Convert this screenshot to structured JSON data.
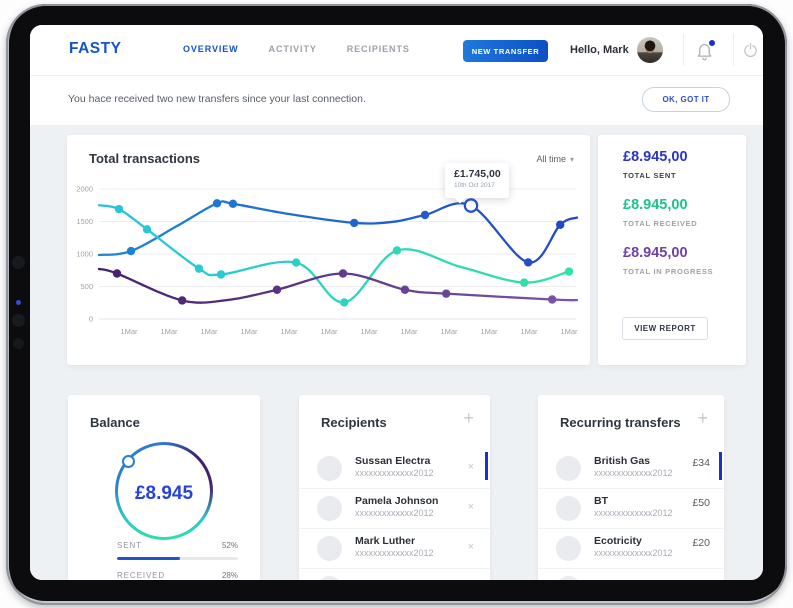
{
  "app": {
    "brand": "FASTY"
  },
  "nav": {
    "items": [
      {
        "label": "OVERVIEW",
        "active": true
      },
      {
        "label": "ACTIVITY",
        "active": false
      },
      {
        "label": "RECIPIENTS",
        "active": false
      }
    ],
    "new_transfer_label": "NEW TRANSFER",
    "greeting": "Hello, Mark"
  },
  "notification": {
    "message": "You hace received two new transfers since your last connection.",
    "dismiss_label": "OK, GOT IT"
  },
  "icons": {
    "add": "+",
    "close": "×",
    "caret": "▾"
  },
  "chart_card": {
    "title": "Total transactions",
    "range_label": "All time"
  },
  "chart_data": {
    "type": "line",
    "title": "Total transactions",
    "x_tick_labels": [
      "1Mar",
      "1Mar",
      "1Mar",
      "1Mar",
      "1Mar",
      "1Mar",
      "1Mar",
      "1Mar",
      "1Mar",
      "1Mar",
      "1Mar",
      "1Mar"
    ],
    "y_ticks": [
      0,
      500,
      1000,
      1500,
      2000
    ],
    "ylim": [
      0,
      2000
    ],
    "grid": "horizontal",
    "legend": "none",
    "highlight": {
      "series": "sent",
      "value": 1745,
      "label": "£1.745,00",
      "date": "10th Oct 2017"
    },
    "series": [
      {
        "name": "sent",
        "colors": [
          "#1d86d8",
          "#2348c4"
        ],
        "points": [
          [
            -0.75,
            985
          ],
          [
            0.05,
            1045
          ],
          [
            1.2,
            1430
          ],
          [
            2.2,
            1780
          ],
          [
            2.6,
            1772
          ],
          [
            4.0,
            1615
          ],
          [
            5.63,
            1478
          ],
          [
            6.6,
            1495
          ],
          [
            7.4,
            1600
          ],
          [
            8.55,
            1745
          ],
          [
            9.98,
            870
          ],
          [
            10.78,
            1450
          ],
          [
            11.2,
            1560
          ]
        ],
        "dots": [
          1,
          3,
          4,
          6,
          8,
          10,
          11
        ],
        "open_dot": 9
      },
      {
        "name": "received",
        "colors": [
          "#27c3dc",
          "#2fe3a5"
        ],
        "points": [
          [
            -0.75,
            1750
          ],
          [
            -0.25,
            1690
          ],
          [
            0.45,
            1380
          ],
          [
            1.75,
            775
          ],
          [
            2.3,
            685
          ],
          [
            4.18,
            868
          ],
          [
            5.38,
            255
          ],
          [
            6.7,
            1055
          ],
          [
            8.3,
            800
          ],
          [
            9.88,
            560
          ],
          [
            11.0,
            730
          ]
        ],
        "dots": [
          1,
          2,
          3,
          4,
          5,
          6,
          7,
          9,
          10
        ]
      },
      {
        "name": "in_progress",
        "colors": [
          "#44206e",
          "#7a55a8"
        ],
        "points": [
          [
            -0.75,
            770
          ],
          [
            -0.3,
            700
          ],
          [
            1.33,
            285
          ],
          [
            2.5,
            295
          ],
          [
            3.7,
            450
          ],
          [
            5.35,
            700
          ],
          [
            6.9,
            450
          ],
          [
            7.93,
            390
          ],
          [
            10.58,
            300
          ],
          [
            11.2,
            290
          ]
        ],
        "dots": [
          1,
          2,
          4,
          5,
          6,
          7,
          8
        ]
      }
    ]
  },
  "totals": {
    "items": [
      {
        "amount": "£8.945,00",
        "label": "TOTAL SENT",
        "color": "#2b35c8",
        "label_color": "#3a3f4a"
      },
      {
        "amount": "£8.945,00",
        "label": "TOTAL RECEIVED",
        "color": "#1ec28e",
        "label_color": "#9aa1ab"
      },
      {
        "amount": "£8.945,00",
        "label": "TOTAL IN PROGRESS",
        "color": "#6f42a8",
        "label_color": "#9aa1ab"
      }
    ],
    "view_report_label": "VIEW REPORT"
  },
  "balance": {
    "title": "Balance",
    "amount": "£8.945",
    "amount_color": "#2742d8",
    "ring_gradient": [
      "#2f79d3 0deg",
      "#3a2070 45deg",
      "#46246f 85deg",
      "#2bc9c6 125deg",
      "#2fe0a8 175deg",
      "#28cfc0 230deg",
      "#2a7fd0 280deg",
      "#2f79d3 360deg"
    ],
    "stats": [
      {
        "label": "SENT",
        "pct_label": "52%",
        "value": 52,
        "bar_color": "#2453c6"
      },
      {
        "label": "RECEIVED",
        "pct_label": "28%",
        "value": 28,
        "bar_color": "#2453c6"
      }
    ]
  },
  "recipients": {
    "title": "Recipients",
    "items": [
      {
        "name": "Sussan Electra",
        "account": "xxxxxxxxxxxxx2012"
      },
      {
        "name": "Pamela Johnson",
        "account": "xxxxxxxxxxxxx2012"
      },
      {
        "name": "Mark Luther",
        "account": "xxxxxxxxxxxxx2012"
      }
    ],
    "has_partial_fourth_row": true
  },
  "recurring": {
    "title": "Recurring transfers",
    "items": [
      {
        "name": "British Gas",
        "account": "xxxxxxxxxxxxx2012",
        "amount": "£34"
      },
      {
        "name": "BT",
        "account": "xxxxxxxxxxxxx2012",
        "amount": "£50"
      },
      {
        "name": "Ecotricity",
        "account": "xxxxxxxxxxxxx2012",
        "amount": "£20"
      }
    ],
    "has_partial_fourth_row": true
  }
}
